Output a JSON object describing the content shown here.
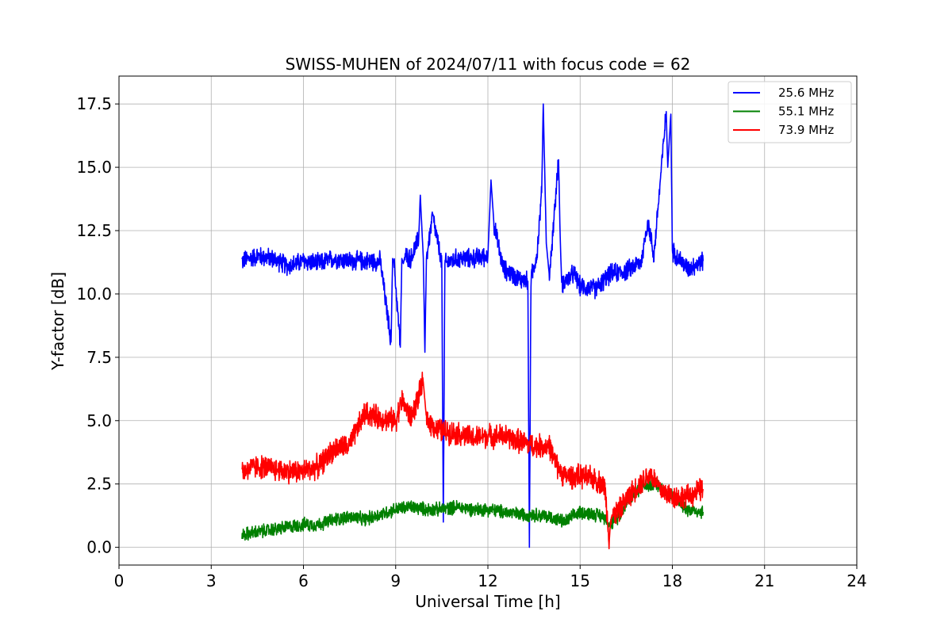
{
  "chart_data": {
    "type": "line",
    "title": "SWISS-MUHEN of 2024/07/11 with focus code = 62",
    "xlabel": "Universal Time [h]",
    "ylabel": "Y-factor [dB]",
    "xlim": [
      0,
      24
    ],
    "ylim": [
      -0.7,
      18.6
    ],
    "xticks": [
      0,
      3,
      6,
      9,
      12,
      15,
      18,
      21,
      24
    ],
    "xtick_labels": [
      "0",
      "3",
      "6",
      "9",
      "12",
      "15",
      "18",
      "21",
      "24"
    ],
    "yticks": [
      0,
      2.5,
      5,
      7.5,
      10,
      12.5,
      15,
      17.5
    ],
    "ytick_labels": [
      "0.0",
      "2.5",
      "5.0",
      "7.5",
      "10.0",
      "12.5",
      "15.0",
      "17.5"
    ],
    "grid": true,
    "legend_position": "top-right",
    "series": [
      {
        "name": "25.6 MHz",
        "color": "#0000ff",
        "x": [
          4.0,
          4.5,
          5.0,
          5.5,
          6.0,
          6.5,
          7.0,
          7.5,
          8.0,
          8.5,
          8.85,
          8.9,
          8.95,
          9.15,
          9.2,
          9.25,
          9.3,
          9.5,
          9.75,
          9.8,
          9.9,
          9.95,
          10.0,
          10.2,
          10.5,
          10.55,
          10.6,
          11.0,
          11.5,
          12.0,
          12.1,
          12.2,
          12.5,
          13.0,
          13.3,
          13.35,
          13.4,
          13.6,
          13.75,
          13.8,
          13.9,
          14.0,
          14.3,
          14.35,
          14.4,
          14.8,
          15.0,
          15.5,
          16.0,
          16.5,
          17.0,
          17.2,
          17.4,
          17.8,
          17.85,
          17.95,
          18.0,
          18.5,
          19.0
        ],
        "y": [
          11.3,
          11.5,
          11.4,
          11.1,
          11.3,
          11.2,
          11.4,
          11.3,
          11.3,
          11.3,
          8.1,
          11.4,
          11.2,
          7.9,
          11.4,
          11.2,
          11.5,
          11.4,
          12.2,
          13.9,
          11.4,
          7.7,
          11.4,
          13.1,
          11.2,
          1.0,
          11.2,
          11.4,
          11.4,
          11.5,
          14.5,
          12.7,
          11.0,
          10.6,
          10.5,
          0.0,
          10.6,
          11.6,
          14.0,
          17.5,
          12.0,
          10.7,
          15.3,
          12.3,
          10.4,
          10.8,
          10.3,
          10.2,
          10.8,
          10.9,
          11.3,
          12.9,
          11.5,
          17.2,
          15.0,
          17.1,
          11.7,
          11.0,
          11.3
        ]
      },
      {
        "name": "55.1 MHz",
        "color": "#008000",
        "x": [
          4.0,
          4.5,
          5.0,
          5.5,
          6.0,
          6.5,
          7.0,
          7.5,
          8.0,
          8.5,
          9.0,
          9.5,
          10.0,
          10.5,
          11.0,
          11.5,
          12.0,
          12.5,
          13.0,
          13.5,
          14.0,
          14.5,
          15.0,
          15.5,
          15.8,
          16.0,
          16.3,
          16.5,
          17.0,
          17.5,
          18.0,
          18.5,
          19.0
        ],
        "y": [
          0.5,
          0.6,
          0.7,
          0.8,
          0.9,
          0.9,
          1.1,
          1.2,
          1.1,
          1.3,
          1.5,
          1.6,
          1.5,
          1.5,
          1.6,
          1.5,
          1.5,
          1.4,
          1.3,
          1.3,
          1.2,
          1.0,
          1.4,
          1.3,
          1.2,
          0.9,
          1.3,
          1.8,
          2.4,
          2.5,
          2.0,
          1.5,
          1.4
        ]
      },
      {
        "name": "73.9 MHz",
        "color": "#ff0000",
        "x": [
          4.0,
          4.5,
          5.0,
          5.5,
          6.0,
          6.5,
          7.0,
          7.5,
          7.8,
          8.0,
          8.5,
          9.0,
          9.2,
          9.5,
          9.9,
          10.0,
          10.3,
          10.5,
          11.0,
          11.5,
          12.0,
          12.5,
          13.0,
          13.5,
          14.0,
          14.2,
          14.5,
          15.0,
          15.5,
          15.8,
          15.95,
          16.0,
          16.3,
          16.5,
          17.0,
          17.3,
          17.6,
          18.0,
          18.5,
          19.0
        ],
        "y": [
          3.0,
          3.2,
          3.1,
          3.0,
          3.0,
          3.2,
          3.9,
          4.0,
          4.8,
          5.3,
          5.1,
          5.0,
          5.8,
          5.1,
          6.5,
          5.1,
          4.7,
          4.6,
          4.5,
          4.3,
          4.4,
          4.4,
          4.2,
          4.0,
          4.0,
          3.3,
          2.8,
          2.8,
          2.7,
          2.4,
          0.3,
          1.2,
          1.5,
          1.9,
          2.6,
          2.9,
          2.3,
          2.0,
          2.0,
          2.3
        ]
      }
    ]
  }
}
